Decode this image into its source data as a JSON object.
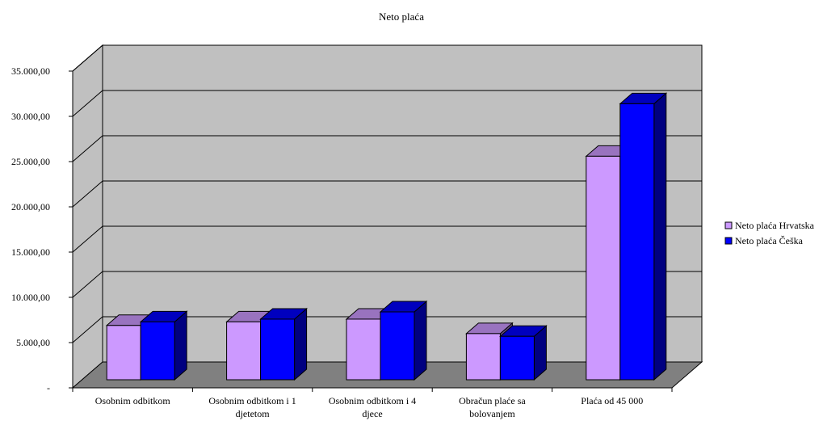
{
  "chart_data": {
    "type": "bar",
    "title": "Neto plaća",
    "categories": [
      [
        "Osobnim odbitkom"
      ],
      [
        "Osobnim odbitkom i 1",
        "djetetom"
      ],
      [
        "Osobnim odbitkom i 4",
        "djece"
      ],
      [
        "Obračun plaće sa",
        "bolovanjem"
      ],
      [
        "Plaća od 45 000"
      ]
    ],
    "series": [
      {
        "name": "Neto plaća Hrvatska",
        "color": "#cc99ff",
        "values": [
          6000,
          6400,
          6700,
          5100,
          24700
        ]
      },
      {
        "name": "Neto plaća Češka",
        "color": "#0000ff",
        "values": [
          6400,
          6700,
          7500,
          4800,
          30500
        ]
      }
    ],
    "ylim": [
      0,
      35000
    ],
    "yticks": [
      "-",
      "5.000,00",
      "10.000,00",
      "15.000,00",
      "20.000,00",
      "25.000,00",
      "30.000,00",
      "35.000,00"
    ],
    "grid": true,
    "legend": "right",
    "wall_color": "#c0c0c0",
    "floor_color": "#808080"
  }
}
